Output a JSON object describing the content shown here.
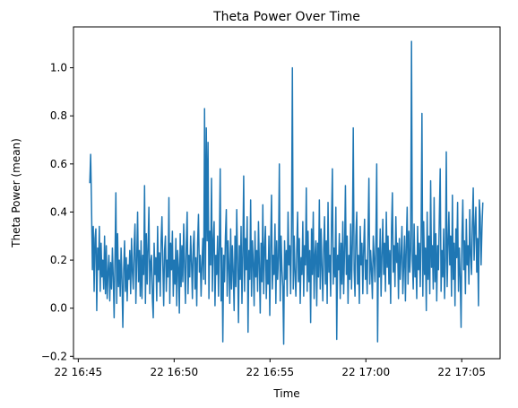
{
  "chart_data": {
    "type": "line",
    "title": "Theta Power Over Time",
    "xlabel": "Time",
    "ylabel": "Theta Power (mean)",
    "x_start_minute": 45.6,
    "x_end_minute": 66.1,
    "x_ticks": [
      "22 16:45",
      "22 16:50",
      "22 16:55",
      "22 17:00",
      "22 17:05"
    ],
    "x_tick_minutes": [
      45,
      50,
      55,
      60,
      65
    ],
    "x_range_minutes": [
      44.75,
      67.0
    ],
    "y_ticks": [
      "−0.2",
      "0.0",
      "0.2",
      "0.4",
      "0.6",
      "0.8",
      "1.0"
    ],
    "y_tick_values": [
      -0.2,
      0.0,
      0.2,
      0.4,
      0.6,
      0.8,
      1.0
    ],
    "ylim": [
      -0.21,
      1.17
    ],
    "grid": false,
    "series_color": "#1f77b4",
    "series": [
      {
        "values": [
          0.52,
          0.64,
          0.43,
          0.16,
          0.34,
          0.07,
          0.29,
          0.33,
          -0.01,
          0.25,
          0.16,
          0.34,
          0.07,
          0.27,
          0.13,
          0.2,
          0.08,
          0.3,
          0.06,
          0.26,
          0.04,
          0.15,
          0.22,
          0.03,
          0.19,
          0.08,
          0.25,
          0.13,
          -0.04,
          0.21,
          0.48,
          0.02,
          0.31,
          0.09,
          0.2,
          0.05,
          0.25,
          0.12,
          -0.08,
          0.16,
          0.28,
          0.07,
          0.21,
          0.03,
          0.18,
          0.12,
          0.24,
          0.06,
          0.29,
          0.15,
          0.08,
          0.26,
          0.35,
          0.02,
          0.2,
          0.4,
          0.11,
          0.24,
          0.05,
          0.28,
          0.04,
          0.22,
          0.14,
          0.51,
          0.02,
          0.31,
          0.1,
          0.25,
          0.42,
          0.06,
          0.19,
          0.22,
          0.04,
          -0.04,
          0.27,
          0.14,
          0.21,
          0.03,
          0.34,
          0.11,
          0.23,
          0.05,
          0.28,
          0.38,
          0.18,
          0.01,
          0.24,
          0.3,
          0.07,
          0.2,
          0.13,
          0.46,
          0.02,
          0.27,
          0.16,
          0.32,
          0.05,
          0.2,
          0.1,
          0.29,
          0.01,
          0.24,
          0.17,
          -0.02,
          0.31,
          0.09,
          0.26,
          0.11,
          0.35,
          0.18,
          0.02,
          0.27,
          0.4,
          0.06,
          0.22,
          0.13,
          0.3,
          0.19,
          0.04,
          0.26,
          0.32,
          0.08,
          0.21,
          0.01,
          0.27,
          0.39,
          0.15,
          0.22,
          0.05,
          0.18,
          0.29,
          0.12,
          0.83,
          0.1,
          0.75,
          0.28,
          0.69,
          0.04,
          0.32,
          0.18,
          0.54,
          0.07,
          0.28,
          0.36,
          0.01,
          0.22,
          0.14,
          0.3,
          0.05,
          0.26,
          0.58,
          0.03,
          0.25,
          -0.14,
          0.22,
          0.11,
          0.3,
          0.41,
          0.05,
          0.28,
          0.17,
          0.02,
          0.33,
          0.08,
          0.26,
          0.15,
          -0.01,
          0.3,
          0.09,
          0.41,
          0.19,
          -0.06,
          0.26,
          0.12,
          0.34,
          0.02,
          0.22,
          0.55,
          0.07,
          0.29,
          0.16,
          0.38,
          -0.1,
          0.24,
          0.12,
          0.45,
          0.05,
          0.28,
          0.19,
          0.01,
          0.32,
          0.13,
          0.24,
          0.07,
          0.36,
          0.18,
          -0.02,
          0.27,
          0.11,
          0.43,
          0.06,
          0.25,
          0.34,
          0.04,
          0.2,
          0.1,
          0.3,
          -0.03,
          0.26,
          0.47,
          0.08,
          0.22,
          0.14,
          0.35,
          0.02,
          0.28,
          0.12,
          0.21,
          0.6,
          0.03,
          0.3,
          0.16,
          0.09,
          -0.15,
          0.28,
          0.12,
          0.24,
          0.05,
          0.4,
          0.18,
          0.26,
          0.06,
          0.33,
          1.0,
          0.08,
          0.3,
          0.15,
          0.05,
          0.24,
          0.4,
          0.11,
          0.29,
          0.02,
          0.21,
          0.14,
          0.36,
          0.05,
          0.26,
          0.18,
          0.5,
          0.07,
          0.32,
          0.11,
          0.24,
          -0.06,
          0.33,
          0.14,
          0.4,
          0.04,
          0.22,
          0.28,
          0.01,
          0.27,
          0.13,
          0.45,
          0.08,
          0.33,
          0.17,
          0.03,
          0.25,
          0.38,
          0.1,
          0.28,
          0.02,
          0.44,
          0.15,
          0.22,
          0.05,
          0.36,
          0.58,
          0.1,
          0.25,
          0.13,
          0.42,
          -0.13,
          0.22,
          0.16,
          0.31,
          0.04,
          0.27,
          0.1,
          0.36,
          0.06,
          0.24,
          0.51,
          0.14,
          0.3,
          0.02,
          0.22,
          0.12,
          0.35,
          0.08,
          0.27,
          0.75,
          0.16,
          0.05,
          0.3,
          0.4,
          0.1,
          0.22,
          0.02,
          0.34,
          0.18,
          0.27,
          0.06,
          0.25,
          0.37,
          0.12,
          0.2,
          0.06,
          0.31,
          0.54,
          0.1,
          0.24,
          0.16,
          0.04,
          0.3,
          0.21,
          0.11,
          0.28,
          0.6,
          -0.14,
          0.25,
          0.13,
          0.33,
          0.05,
          0.22,
          0.37,
          0.14,
          0.27,
          0.07,
          0.4,
          0.17,
          0.3,
          0.1,
          0.24,
          0.02,
          0.33,
          0.48,
          0.15,
          0.26,
          0.09,
          0.38,
          0.19,
          0.27,
          0.04,
          0.29,
          0.12,
          0.22,
          0.34,
          0.06,
          0.18,
          0.3,
          0.03,
          0.26,
          0.42,
          0.1,
          0.32,
          0.15,
          0.24,
          1.11,
          0.2,
          0.08,
          0.35,
          0.13,
          0.22,
          0.04,
          0.34,
          0.16,
          0.27,
          0.09,
          0.3,
          0.81,
          0.05,
          0.36,
          0.14,
          0.25,
          -0.01,
          0.4,
          0.12,
          0.3,
          0.06,
          0.53,
          0.17,
          0.26,
          0.08,
          0.46,
          0.11,
          0.31,
          0.03,
          0.26,
          0.16,
          0.38,
          0.58,
          0.07,
          0.24,
          0.13,
          0.33,
          0.04,
          0.2,
          0.65,
          0.09,
          0.26,
          0.4,
          0.18,
          0.3,
          0.05,
          0.47,
          0.12,
          0.27,
          0.01,
          0.33,
          0.21,
          0.44,
          0.07,
          0.25,
          0.13,
          -0.08,
          0.3,
          0.45,
          0.16,
          0.28,
          0.06,
          0.37,
          0.18,
          0.26,
          0.1,
          0.41,
          0.22,
          0.14,
          0.36,
          0.5,
          0.2,
          0.33,
          0.42,
          0.15,
          0.29,
          0.01,
          0.45,
          0.38,
          0.18,
          0.33,
          0.44
        ]
      }
    ]
  }
}
